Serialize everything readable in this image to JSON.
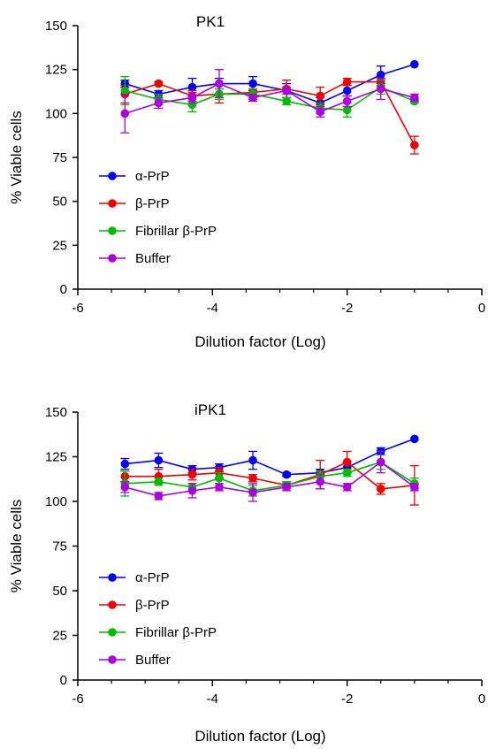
{
  "chart_data": [
    {
      "type": "line",
      "title": "PK1",
      "xlabel": "Dilution factor (Log)",
      "ylabel": "% Viable cells",
      "xlim": [
        -6,
        0
      ],
      "ylim": [
        0,
        150
      ],
      "x_ticks": [
        "-6",
        "-4",
        "-2",
        "0"
      ],
      "y_ticks": [
        "0",
        "25",
        "50",
        "75",
        "100",
        "125",
        "150"
      ],
      "legend_position": "bottom-left",
      "x": [
        -5.3,
        -4.8,
        -4.3,
        -3.9,
        -3.4,
        -2.9,
        -2.4,
        -2.0,
        -1.5,
        -1.0
      ],
      "series": [
        {
          "name": "α-PrP",
          "color": "#0000ee",
          "values": [
            117,
            111,
            115,
            117,
            117,
            113,
            106,
            113,
            122,
            128
          ],
          "errors": [
            2,
            2,
            5,
            3,
            4,
            4,
            3,
            3,
            5,
            0
          ]
        },
        {
          "name": "β-PrP",
          "color": "#ee0000",
          "values": [
            111,
            117,
            110,
            111,
            112,
            114,
            110,
            118,
            118,
            82
          ],
          "errors": [
            5,
            1,
            3,
            5,
            2,
            5,
            5,
            2,
            2,
            5
          ]
        },
        {
          "name": "Fibrillar β-PrP",
          "color": "#00bb00",
          "values": [
            113,
            108,
            105,
            111,
            111,
            107,
            103,
            102,
            115,
            107
          ],
          "errors": [
            8,
            3,
            4,
            3,
            3,
            2,
            3,
            4,
            4,
            1
          ]
        },
        {
          "name": "Buffer",
          "color": "#aa00dd",
          "values": [
            100,
            106,
            109,
            117,
            109,
            113,
            101,
            107,
            114,
            109
          ],
          "errors": [
            11,
            3,
            3,
            8,
            2,
            2,
            3,
            3,
            6,
            2
          ]
        }
      ]
    },
    {
      "type": "line",
      "title": "iPK1",
      "xlabel": "Dilution factor (Log)",
      "ylabel": "% Viable cells",
      "xlim": [
        -6,
        0
      ],
      "ylim": [
        0,
        150
      ],
      "x_ticks": [
        "-6",
        "-4",
        "-2",
        "0"
      ],
      "y_ticks": [
        "0",
        "25",
        "50",
        "75",
        "100",
        "125",
        "150"
      ],
      "legend_position": "bottom-left",
      "x": [
        -5.3,
        -4.8,
        -4.3,
        -3.9,
        -3.4,
        -2.9,
        -2.4,
        -2.0,
        -1.5,
        -1.0
      ],
      "series": [
        {
          "name": "α-PrP",
          "color": "#0000ee",
          "values": [
            121,
            123,
            118,
            119,
            123,
            115,
            116,
            119,
            128,
            135
          ],
          "errors": [
            3,
            4,
            2,
            2,
            5,
            1,
            2,
            3,
            2,
            0
          ]
        },
        {
          "name": "β-PrP",
          "color": "#ee0000",
          "values": [
            114,
            114,
            115,
            116,
            113,
            109,
            115,
            122,
            107,
            109
          ],
          "errors": [
            3,
            4,
            3,
            3,
            2,
            2,
            8,
            6,
            3,
            11
          ]
        },
        {
          "name": "Fibrillar β-PrP",
          "color": "#00bb00",
          "values": [
            110,
            111,
            108,
            113,
            106,
            109,
            114,
            116,
            122,
            110
          ],
          "errors": [
            7,
            2,
            2,
            3,
            3,
            2,
            3,
            2,
            4,
            3
          ]
        },
        {
          "name": "Buffer",
          "color": "#aa00dd",
          "values": [
            108,
            103,
            106,
            108,
            105,
            108,
            111,
            108,
            122,
            108
          ],
          "errors": [
            3,
            2,
            4,
            2,
            5,
            2,
            4,
            2,
            6,
            2
          ]
        }
      ]
    }
  ]
}
